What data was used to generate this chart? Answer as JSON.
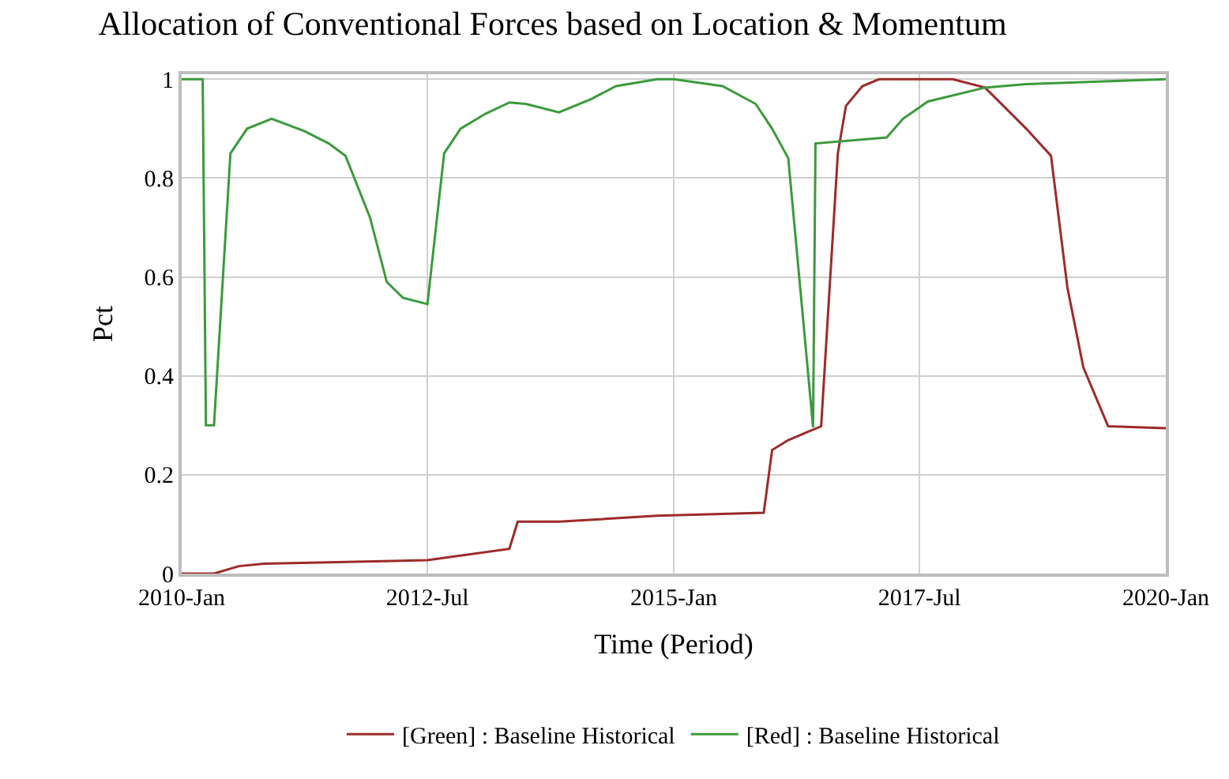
{
  "chart_data": {
    "type": "line",
    "title": "Allocation of Conventional Forces based on Location & Momentum",
    "xlabel": "Time (Period)",
    "ylabel": "Pct",
    "xlim": [
      "2010-01",
      "2020-01"
    ],
    "xticks": [
      {
        "value": "2010-01",
        "label": "2010-Jan"
      },
      {
        "value": "2012-07",
        "label": "2012-Jul"
      },
      {
        "value": "2015-01",
        "label": "2015-Jan"
      },
      {
        "value": "2017-07",
        "label": "2017-Jul"
      },
      {
        "value": "2020-01",
        "label": "2020-Jan"
      }
    ],
    "ylim": [
      0,
      1.01
    ],
    "yticks": [
      0,
      0.2,
      0.4,
      0.6,
      0.8,
      1
    ],
    "grid": true,
    "legend": "bottom",
    "line_style": "solid",
    "series": [
      {
        "name": "[Green] : Baseline Historical",
        "color": "#9e2a2a",
        "x": [
          "2010-01",
          "2010-05",
          "2010-08",
          "2010-11",
          "2012-07",
          "2013-05",
          "2013-06",
          "2013-11",
          "2014-11",
          "2015-12",
          "2016-01",
          "2016-03",
          "2016-07",
          "2016-09",
          "2016-10",
          "2016-12",
          "2017-02",
          "2017-11",
          "2018-03",
          "2018-08",
          "2018-11",
          "2019-01",
          "2019-03",
          "2019-06",
          "2020-01"
        ],
        "values": [
          0,
          0,
          0.015,
          0.02,
          0.027,
          0.05,
          0.105,
          0.105,
          0.117,
          0.123,
          0.25,
          0.27,
          0.298,
          0.85,
          0.946,
          0.986,
          1,
          1,
          0.983,
          0.9,
          0.845,
          0.578,
          0.417,
          0.298,
          0.294
        ]
      },
      {
        "name": "[Red] : Baseline Historical",
        "color": "#3c9a3c",
        "x": [
          "2010-01",
          "2010-03-20",
          "2010-04-01",
          "2010-05",
          "2010-07",
          "2010-09",
          "2010-12",
          "2011-04",
          "2011-07",
          "2011-09",
          "2011-12",
          "2012-02",
          "2012-04",
          "2012-07",
          "2012-09",
          "2012-11",
          "2013-02",
          "2013-05",
          "2013-07",
          "2013-11",
          "2014-03",
          "2014-06",
          "2014-11",
          "2015-01",
          "2015-07",
          "2015-11",
          "2016-01",
          "2016-03",
          "2016-06-01",
          "2016-06-10",
          "2017-03",
          "2017-05",
          "2017-08",
          "2018-03",
          "2018-08",
          "2020-01"
        ],
        "values": [
          1,
          1,
          0.3,
          0.3,
          0.85,
          0.9,
          0.92,
          0.895,
          0.87,
          0.845,
          0.72,
          0.59,
          0.558,
          0.545,
          0.85,
          0.9,
          0.93,
          0.953,
          0.95,
          0.933,
          0.96,
          0.986,
          1,
          1,
          0.986,
          0.95,
          0.9,
          0.84,
          0.296,
          0.87,
          0.882,
          0.92,
          0.955,
          0.983,
          0.99,
          1
        ]
      }
    ]
  }
}
